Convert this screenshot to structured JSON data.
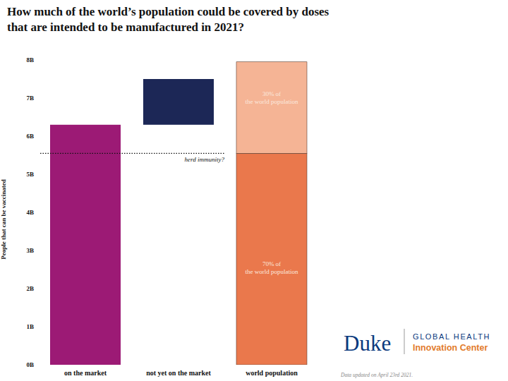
{
  "chart_data": {
    "type": "bar",
    "title": "How much of the world’s population could be covered by doses that are intended to be manufactured in 2021?",
    "y_label": "People that can be vaccinated",
    "categories": [
      "on the market",
      "not yet on the market",
      "world population"
    ],
    "series": [
      {
        "type": "waterfall",
        "values": [
          6.3,
          1.2,
          null
        ],
        "colors": [
          "#9c1a75",
          "#1c2756",
          null
        ]
      },
      {
        "type": "bar",
        "name": "70% of the world population",
        "values": [
          null,
          null,
          5.55
        ],
        "color": "#ea784c"
      },
      {
        "type": "bar",
        "name": "30% of the world population",
        "values": [
          null,
          null,
          2.4
        ],
        "color": "#f5b495"
      }
    ],
    "stacked": true,
    "ylim": [
      0,
      8
    ],
    "yticks": [
      {
        "value": 0,
        "label": "0B"
      },
      {
        "value": 1,
        "label": "1B"
      },
      {
        "value": 2,
        "label": "2B"
      },
      {
        "value": 3,
        "label": "3B"
      },
      {
        "value": 4,
        "label": "4B"
      },
      {
        "value": 5,
        "label": "5B"
      },
      {
        "value": 6,
        "label": "6B"
      },
      {
        "value": 7,
        "label": "7B"
      },
      {
        "value": 8,
        "label": "8B"
      }
    ],
    "grid": false,
    "annotations": [
      {
        "text": "herd immunity?",
        "y": 5.55,
        "line_style": "dotted"
      }
    ],
    "logo": {
      "name": "Duke",
      "lines": [
        "GLOBAL HEALTH",
        "Innovation Center"
      ]
    },
    "note": "Data updated on April 23rd 2021."
  }
}
